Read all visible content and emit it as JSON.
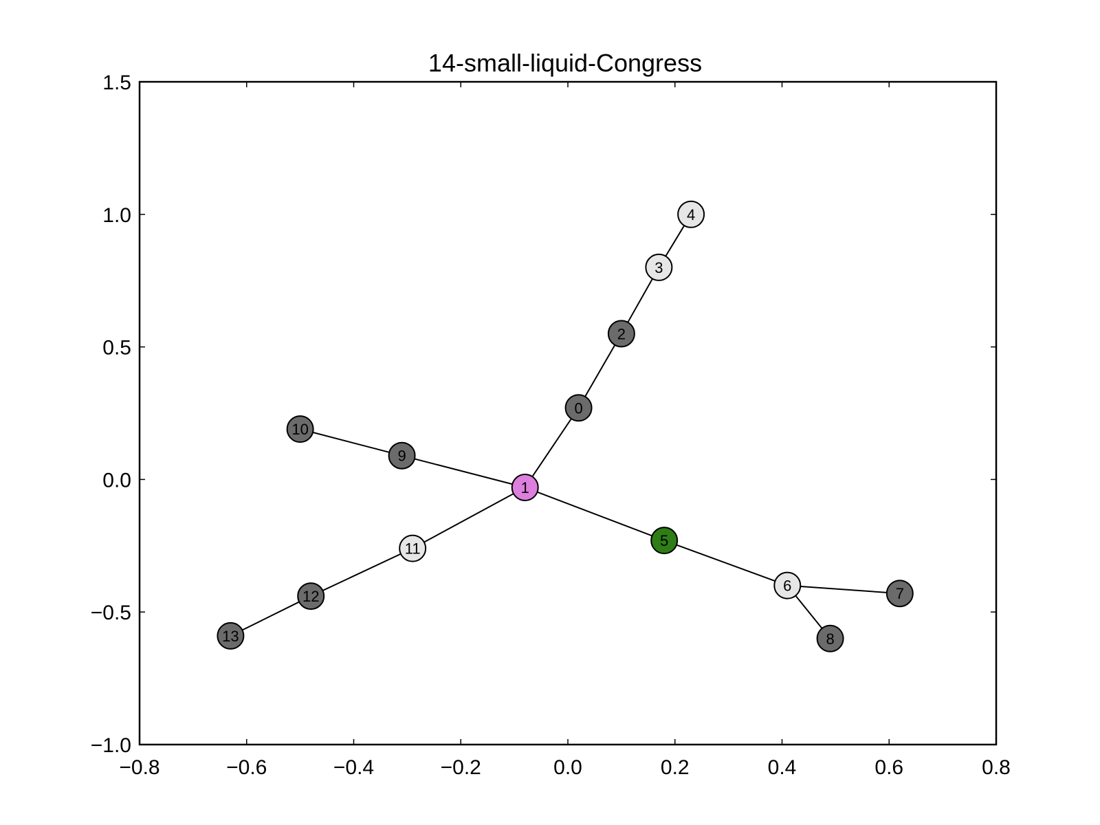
{
  "chart_data": {
    "type": "scatter",
    "title": "14-small-liquid-Congress",
    "xlabel": "",
    "ylabel": "",
    "xlim": [
      -0.8,
      0.8
    ],
    "ylim": [
      -1.0,
      1.5
    ],
    "xticks": [
      -0.8,
      -0.6,
      -0.4,
      -0.2,
      0.0,
      0.2,
      0.4,
      0.6,
      0.8
    ],
    "xtick_labels": [
      "−0.8",
      "−0.6",
      "−0.4",
      "−0.2",
      "0.0",
      "0.2",
      "0.4",
      "0.6",
      "0.8"
    ],
    "yticks": [
      -1.0,
      -0.5,
      0.0,
      0.5,
      1.0,
      1.5
    ],
    "ytick_labels": [
      "−1.0",
      "−0.5",
      "0.0",
      "0.5",
      "1.0",
      "1.5"
    ],
    "grid": false,
    "colors": {
      "dark": "#6b6b6b",
      "light": "#e6e6e6",
      "pink": "#dd7fdd",
      "green": "#2e7d16",
      "edge": "#000000",
      "axes": "#000000"
    },
    "nodes": [
      {
        "id": "0",
        "x": 0.02,
        "y": 0.27,
        "color": "dark"
      },
      {
        "id": "1",
        "x": -0.08,
        "y": -0.03,
        "color": "pink"
      },
      {
        "id": "2",
        "x": 0.1,
        "y": 0.55,
        "color": "dark"
      },
      {
        "id": "3",
        "x": 0.17,
        "y": 0.8,
        "color": "light"
      },
      {
        "id": "4",
        "x": 0.23,
        "y": 1.0,
        "color": "light"
      },
      {
        "id": "5",
        "x": 0.18,
        "y": -0.23,
        "color": "green"
      },
      {
        "id": "6",
        "x": 0.41,
        "y": -0.4,
        "color": "light"
      },
      {
        "id": "7",
        "x": 0.62,
        "y": -0.43,
        "color": "dark"
      },
      {
        "id": "8",
        "x": 0.49,
        "y": -0.6,
        "color": "dark"
      },
      {
        "id": "9",
        "x": -0.31,
        "y": 0.09,
        "color": "dark"
      },
      {
        "id": "10",
        "x": -0.5,
        "y": 0.19,
        "color": "dark"
      },
      {
        "id": "11",
        "x": -0.29,
        "y": -0.26,
        "color": "light"
      },
      {
        "id": "12",
        "x": -0.48,
        "y": -0.44,
        "color": "dark"
      },
      {
        "id": "13",
        "x": -0.63,
        "y": -0.59,
        "color": "dark"
      }
    ],
    "edges": [
      [
        "0",
        "1"
      ],
      [
        "0",
        "2"
      ],
      [
        "2",
        "3"
      ],
      [
        "3",
        "4"
      ],
      [
        "1",
        "5"
      ],
      [
        "5",
        "6"
      ],
      [
        "6",
        "7"
      ],
      [
        "6",
        "8"
      ],
      [
        "1",
        "9"
      ],
      [
        "9",
        "10"
      ],
      [
        "1",
        "11"
      ],
      [
        "11",
        "12"
      ],
      [
        "12",
        "13"
      ]
    ]
  }
}
